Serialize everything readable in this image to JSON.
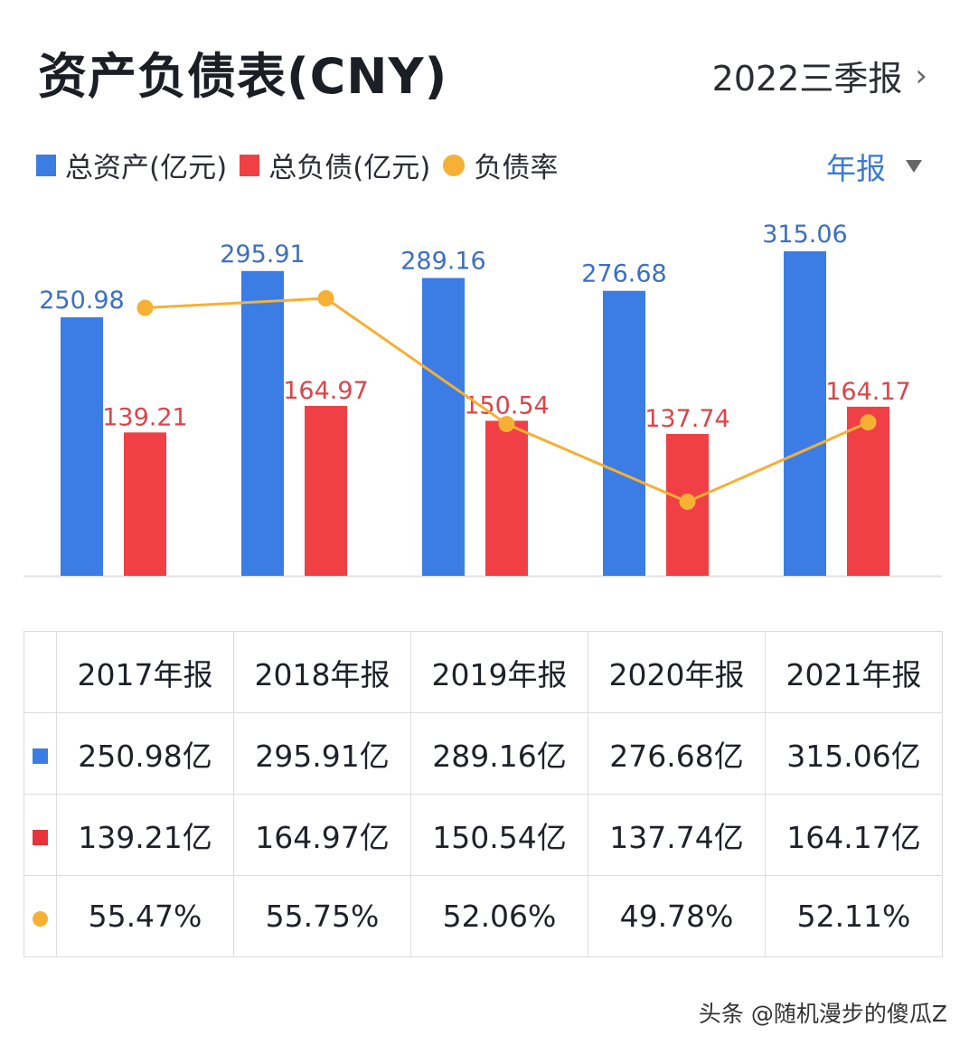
{
  "header": {
    "title": "资产负债表(CNY)",
    "period": "2022三季报",
    "period_chevron": "›"
  },
  "legend": {
    "items": [
      {
        "label": "总资产(亿元)",
        "color": "#3b7de4",
        "shape": "square"
      },
      {
        "label": "总负债(亿元)",
        "color": "#f04045",
        "shape": "square"
      },
      {
        "label": "负债率",
        "color": "#f6b034",
        "shape": "circle"
      }
    ],
    "frequency": "年报"
  },
  "chart_data": {
    "type": "bar",
    "categories": [
      "2017年报",
      "2018年报",
      "2019年报",
      "2020年报",
      "2021年报"
    ],
    "series": [
      {
        "name": "总资产(亿元)",
        "type": "bar",
        "color": "#3b7de4",
        "label_color": "#3d6fc0",
        "values": [
          250.98,
          295.91,
          289.16,
          276.68,
          315.06
        ],
        "labels": [
          "250.98",
          "295.91",
          "289.16",
          "276.68",
          "315.06"
        ]
      },
      {
        "name": "总负债(亿元)",
        "type": "bar",
        "color": "#f04045",
        "label_color": "#d9454a",
        "values": [
          139.21,
          164.97,
          150.54,
          137.74,
          164.17
        ],
        "labels": [
          "139.21",
          "164.97",
          "150.54",
          "137.74",
          "164.17"
        ]
      },
      {
        "name": "负债率",
        "type": "line",
        "color": "#f6b034",
        "unit": "%",
        "values": [
          55.47,
          55.75,
          52.06,
          49.78,
          52.11
        ]
      }
    ],
    "ylim": [
      0,
      330
    ],
    "grid": false
  },
  "table": {
    "headers": [
      "2017年报",
      "2018年报",
      "2019年报",
      "2020年报",
      "2021年报"
    ],
    "rows": [
      {
        "marker": "square",
        "color": "#3b7de4",
        "cells": [
          "250.98亿",
          "295.91亿",
          "289.16亿",
          "276.68亿",
          "315.06亿"
        ]
      },
      {
        "marker": "square",
        "color": "#e8343a",
        "cells": [
          "139.21亿",
          "164.97亿",
          "150.54亿",
          "137.74亿",
          "164.17亿"
        ]
      },
      {
        "marker": "circle",
        "color": "#f6b034",
        "cells": [
          "55.47%",
          "55.75%",
          "52.06%",
          "49.78%",
          "52.11%"
        ]
      }
    ]
  },
  "watermark": "头条 @随机漫步的傻瓜Z"
}
